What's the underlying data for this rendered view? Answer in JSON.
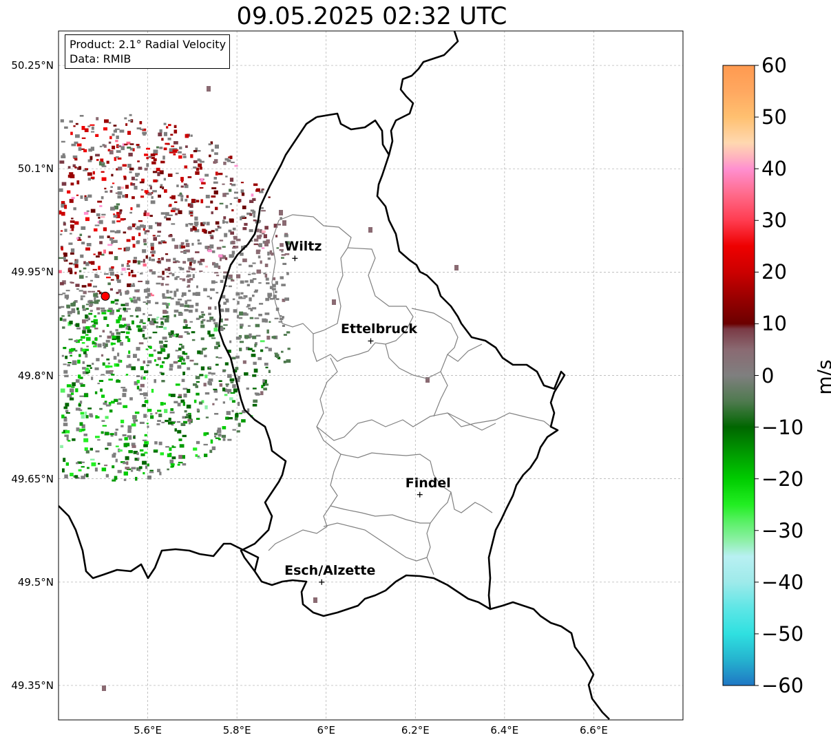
{
  "title": "09.05.2025 02:32 UTC",
  "info": {
    "product": "Product: 2.1° Radial Velocity",
    "data": "Data: RMIB"
  },
  "axes": {
    "lon_ticks": [
      "5.6°E",
      "5.8°E",
      "6°E",
      "6.2°E",
      "6.4°E",
      "6.6°E"
    ],
    "lat_ticks": [
      "50.25°N",
      "50.1°N",
      "49.95°N",
      "49.8°N",
      "49.65°N",
      "49.5°N",
      "49.35°N"
    ],
    "lon_range": [
      5.4,
      6.8
    ],
    "lat_range": [
      49.3,
      50.3
    ],
    "grid": true
  },
  "cities": [
    {
      "name": "Wiltz",
      "lon": 5.93,
      "lat": 49.97
    },
    {
      "name": "Ettelbruck",
      "lon": 6.1,
      "lat": 49.85
    },
    {
      "name": "Findel",
      "lon": 6.21,
      "lat": 49.627
    },
    {
      "name": "Esch/Alzette",
      "lon": 5.99,
      "lat": 49.5
    }
  ],
  "radar_site": {
    "lon": 5.505,
    "lat": 49.915,
    "color": "#ff0000"
  },
  "colorbar": {
    "unit": "m/s",
    "ticks": [
      "60",
      "50",
      "40",
      "30",
      "20",
      "10",
      "0",
      "−10",
      "−20",
      "−30",
      "−40",
      "−50",
      "−60"
    ],
    "min": -60,
    "max": 60,
    "colors": {
      "-60": "#1f77c4",
      "-55": "#25b3cf",
      "-50": "#2fe0e0",
      "-45": "#5ee6e6",
      "-40": "#9eeaea",
      "-35": "#b8f0f2",
      "-32": "#8ef0a8",
      "-28": "#55f060",
      "-25": "#22ee22",
      "-20": "#00cc00",
      "-15": "#009a00",
      "-10": "#006600",
      "-5": "#4f7a4f",
      "0": "#7f7f7f",
      "5": "#8a6a72",
      "9": "#7a3a45",
      "10": "#6b0000",
      "15": "#990000",
      "20": "#cc0000",
      "25": "#ee0000",
      "30": "#ff3c50",
      "35": "#ff6a8a",
      "40": "#ff90d0",
      "42": "#ffb0c0",
      "45": "#ffd8b0",
      "50": "#ffc070",
      "55": "#ffa860",
      "60": "#ff9a50"
    }
  }
}
